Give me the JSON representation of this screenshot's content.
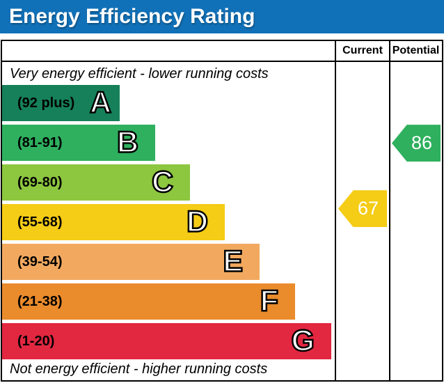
{
  "title": "Energy Efficiency Rating",
  "columns": {
    "current": "Current",
    "potential": "Potential"
  },
  "captions": {
    "top": "Very energy efficient - lower running costs",
    "bottom": "Not energy efficient - higher running costs"
  },
  "colors": {
    "header_bg": "#1171b8",
    "border": "#000000",
    "text_on_header": "#ffffff"
  },
  "chart_data": {
    "type": "bar",
    "title": "Energy Efficiency Rating",
    "bands": [
      {
        "letter": "A",
        "range_label": "(92 plus)",
        "min": 92,
        "max": 100,
        "color": "#15805a"
      },
      {
        "letter": "B",
        "range_label": "(81-91)",
        "min": 81,
        "max": 91,
        "color": "#2eb05e"
      },
      {
        "letter": "C",
        "range_label": "(69-80)",
        "min": 69,
        "max": 80,
        "color": "#8dc63f"
      },
      {
        "letter": "D",
        "range_label": "(55-68)",
        "min": 55,
        "max": 68,
        "color": "#f5cc16"
      },
      {
        "letter": "E",
        "range_label": "(39-54)",
        "min": 39,
        "max": 54,
        "color": "#f2a95f"
      },
      {
        "letter": "F",
        "range_label": "(21-38)",
        "min": 21,
        "max": 38,
        "color": "#ea8b2c"
      },
      {
        "letter": "G",
        "range_label": "(1-20)",
        "min": 1,
        "max": 20,
        "color": "#e22740"
      }
    ],
    "current": {
      "value": 67,
      "color": "#f5cc16"
    },
    "potential": {
      "value": 86,
      "color": "#2eb05e"
    }
  }
}
